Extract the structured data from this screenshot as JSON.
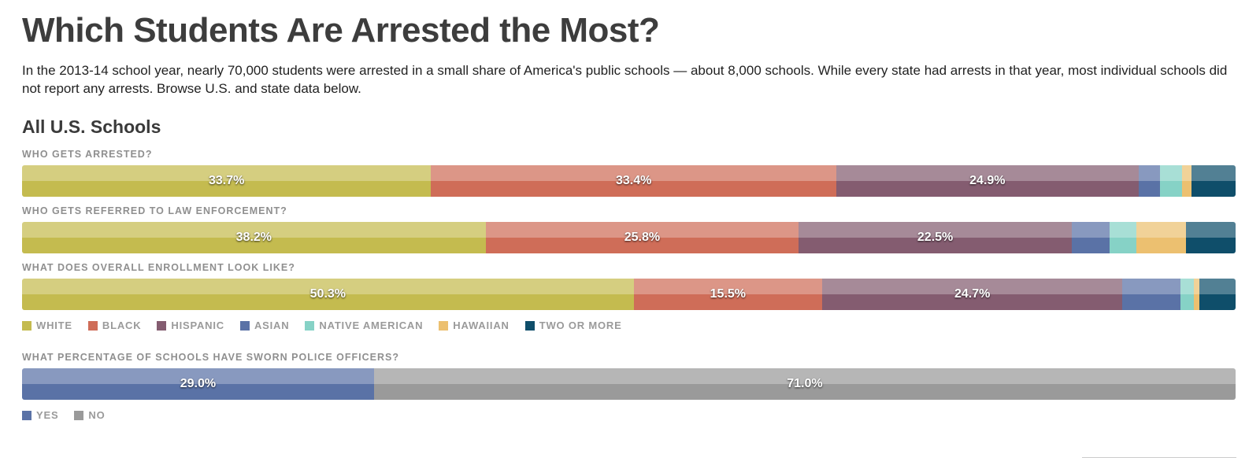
{
  "title": "Which Students Are Arrested the Most?",
  "intro": "In the 2013-14 school year, nearly 70,000 students were arrested in a small share of America's public schools — about 8,000 schools. While every state had arrests in that year, most individual schools did not report any arrests. Browse U.S. and state data below.",
  "section_title": "All U.S. Schools",
  "race_legend": [
    {
      "name": "WHITE",
      "color": "#c4bb4f"
    },
    {
      "name": "BLACK",
      "color": "#cf6d58"
    },
    {
      "name": "HISPANIC",
      "color": "#845c70"
    },
    {
      "name": "ASIAN",
      "color": "#5a72a6"
    },
    {
      "name": "NATIVE AMERICAN",
      "color": "#86d2c6"
    },
    {
      "name": "HAWAIIAN",
      "color": "#ecc070"
    },
    {
      "name": "TWO OR MORE",
      "color": "#0f4e6a"
    }
  ],
  "police_legend": [
    {
      "name": "YES",
      "color": "#5a72a6"
    },
    {
      "name": "NO",
      "color": "#9a9a9a"
    }
  ],
  "chart_data": [
    {
      "type": "bar",
      "orientation": "horizontal-stacked-100",
      "title": "WHO GETS ARRESTED?",
      "series": [
        {
          "name": "WHITE",
          "value": 33.7,
          "label": "33.7%"
        },
        {
          "name": "BLACK",
          "value": 33.4,
          "label": "33.4%"
        },
        {
          "name": "HISPANIC",
          "value": 24.9,
          "label": "24.9%"
        },
        {
          "name": "ASIAN",
          "value": 1.8,
          "label": ""
        },
        {
          "name": "NATIVE AMERICAN",
          "value": 1.8,
          "label": ""
        },
        {
          "name": "HAWAIIAN",
          "value": 0.8,
          "label": ""
        },
        {
          "name": "TWO OR MORE",
          "value": 3.6,
          "label": ""
        }
      ]
    },
    {
      "type": "bar",
      "orientation": "horizontal-stacked-100",
      "title": "WHO GETS REFERRED TO LAW ENFORCEMENT?",
      "series": [
        {
          "name": "WHITE",
          "value": 38.2,
          "label": "38.2%"
        },
        {
          "name": "BLACK",
          "value": 25.8,
          "label": "25.8%"
        },
        {
          "name": "HISPANIC",
          "value": 22.5,
          "label": "22.5%"
        },
        {
          "name": "ASIAN",
          "value": 3.1,
          "label": ""
        },
        {
          "name": "NATIVE AMERICAN",
          "value": 2.2,
          "label": ""
        },
        {
          "name": "HAWAIIAN",
          "value": 4.1,
          "label": ""
        },
        {
          "name": "TWO OR MORE",
          "value": 4.1,
          "label": ""
        }
      ]
    },
    {
      "type": "bar",
      "orientation": "horizontal-stacked-100",
      "title": "WHAT DOES OVERALL ENROLLMENT LOOK LIKE?",
      "series": [
        {
          "name": "WHITE",
          "value": 50.3,
          "label": "50.3%"
        },
        {
          "name": "BLACK",
          "value": 15.5,
          "label": "15.5%"
        },
        {
          "name": "HISPANIC",
          "value": 24.7,
          "label": "24.7%"
        },
        {
          "name": "ASIAN",
          "value": 4.8,
          "label": ""
        },
        {
          "name": "NATIVE AMERICAN",
          "value": 1.1,
          "label": ""
        },
        {
          "name": "HAWAIIAN",
          "value": 0.4,
          "label": ""
        },
        {
          "name": "TWO OR MORE",
          "value": 3.0,
          "label": ""
        }
      ]
    },
    {
      "type": "bar",
      "orientation": "horizontal-stacked-100",
      "title": "WHAT PERCENTAGE OF SCHOOLS HAVE SWORN POLICE OFFICERS?",
      "series": [
        {
          "name": "YES",
          "value": 29.0,
          "label": "29.0%"
        },
        {
          "name": "NO",
          "value": 71.0,
          "label": "71.0%"
        }
      ]
    }
  ]
}
